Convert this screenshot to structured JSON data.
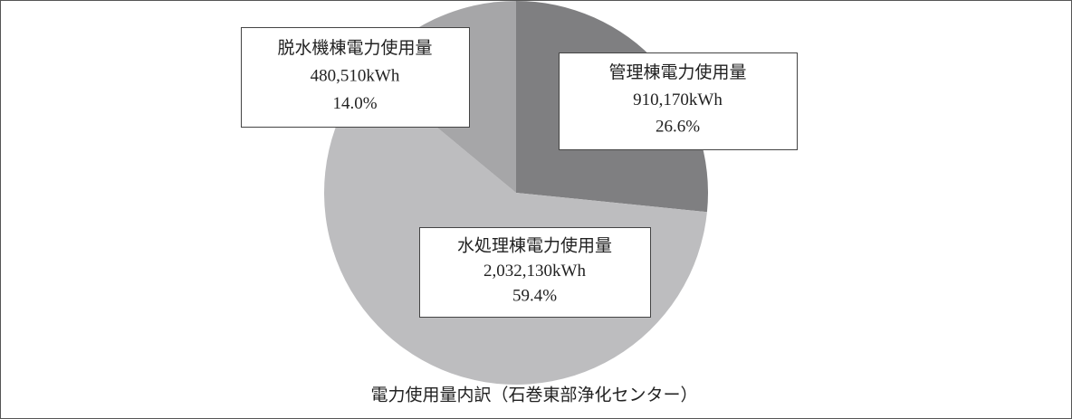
{
  "chart_data": {
    "type": "pie",
    "title": "電力使用量内訳（石巻東部浄化センター）",
    "categories": [
      "管理棟電力使用量",
      "水処理棟電力使用量",
      "脱水機棟電力使用量"
    ],
    "values": [
      26.6,
      59.4,
      14.0
    ],
    "value_labels": [
      "26.6%",
      "59.4%",
      "14.0%"
    ],
    "energy": [
      910170,
      2032130,
      480510
    ],
    "energy_labels": [
      "910,170kWh",
      "2,032,130kWh",
      "480,510kWh"
    ],
    "colors": [
      "#7f7f81",
      "#bdbdbf",
      "#a6a6a8"
    ]
  }
}
